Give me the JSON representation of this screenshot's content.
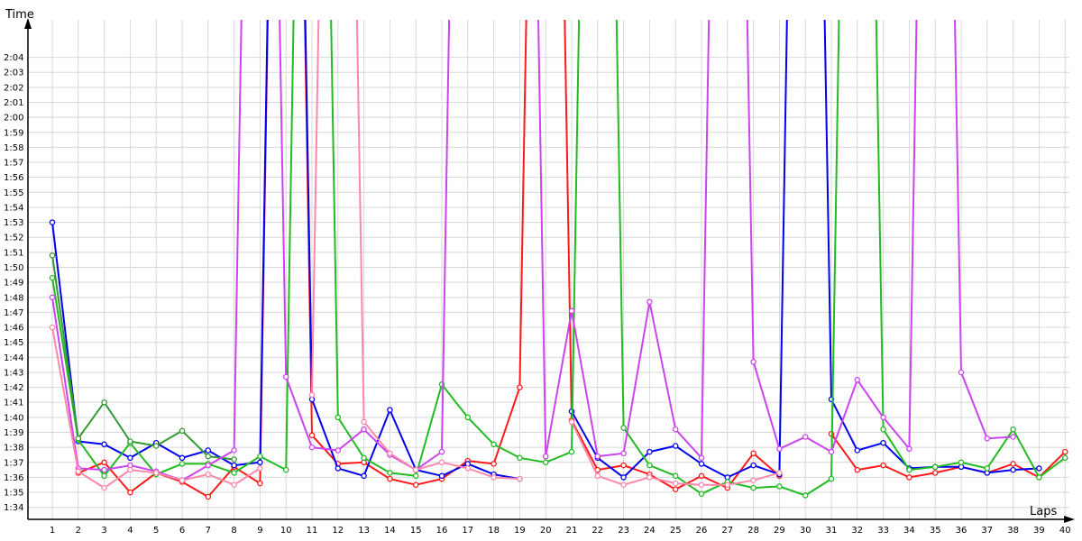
{
  "chart_data": {
    "type": "line",
    "xlabel": "Laps",
    "ylabel": "Time",
    "x": [
      1,
      2,
      3,
      4,
      5,
      6,
      7,
      8,
      9,
      10,
      11,
      12,
      13,
      14,
      15,
      16,
      17,
      18,
      19,
      20,
      21,
      22,
      23,
      24,
      25,
      26,
      27,
      28,
      29,
      30,
      31,
      32,
      33,
      34,
      35,
      36,
      37,
      38,
      39,
      40
    ],
    "y_ticks": [
      "1:34",
      "1:35",
      "1:36",
      "1:37",
      "1:38",
      "1:39",
      "1:40",
      "1:41",
      "1:42",
      "1:43",
      "1:44",
      "1:45",
      "1:46",
      "1:47",
      "1:48",
      "1:49",
      "1:50",
      "1:51",
      "1:52",
      "1:53",
      "1:54",
      "1:55",
      "1:56",
      "1:57",
      "1:58",
      "1:59",
      "2:00",
      "2:01",
      "2:02",
      "2:03",
      "2:04"
    ],
    "ylim_seconds": [
      93.2,
      126.5
    ],
    "grid": true,
    "legend": "none",
    "series": [
      {
        "color": "#ff1a1a",
        "values": [
          null,
          96.3,
          97.0,
          95.0,
          96.3,
          95.7,
          94.7,
          96.7,
          95.6,
          200,
          98.8,
          96.9,
          97.0,
          95.9,
          95.5,
          95.9,
          97.1,
          96.9,
          102.0,
          200,
          99.8,
          96.5,
          96.8,
          96.2,
          95.2,
          96.1,
          95.3,
          97.6,
          96.1,
          null,
          98.9,
          96.5,
          96.8,
          96.0,
          96.3,
          96.7,
          96.3,
          96.9,
          96.0,
          97.7
        ]
      },
      {
        "color": "#0000ee",
        "values": [
          113.0,
          98.4,
          98.2,
          97.3,
          98.3,
          97.3,
          97.8,
          96.8,
          97.0,
          200,
          101.2,
          96.6,
          96.1,
          100.5,
          96.5,
          96.1,
          96.9,
          96.2,
          95.9,
          null,
          100.4,
          97.3,
          96.0,
          97.7,
          98.1,
          96.9,
          96.0,
          96.8,
          96.2,
          200,
          101.2,
          97.8,
          98.3,
          96.6,
          96.7,
          96.7,
          96.3,
          96.5,
          96.6,
          null
        ]
      },
      {
        "color": "#22bb22",
        "values": [
          109.3,
          98.5,
          96.1,
          98.3,
          96.2,
          96.9,
          96.9,
          96.3,
          97.4,
          96.5,
          200,
          100.0,
          97.3,
          96.3,
          96.1,
          102.2,
          100.0,
          98.2,
          97.3,
          97.0,
          97.7,
          200,
          99.3,
          96.8,
          96.1,
          94.9,
          95.7,
          95.3,
          95.4,
          94.8,
          95.9,
          200,
          99.2,
          96.5,
          96.7,
          97.0,
          96.6,
          99.2,
          96.0,
          97.3
        ]
      },
      {
        "color": "#339933",
        "values": [
          110.8,
          98.6,
          101.0,
          98.4,
          98.1,
          99.1,
          97.4,
          97.2,
          null,
          null,
          null,
          null,
          null,
          null,
          null,
          null,
          null,
          null,
          null,
          null,
          null,
          null,
          null,
          null,
          null,
          null,
          null,
          null,
          null,
          null,
          null,
          null,
          null,
          null,
          null,
          null,
          null,
          null,
          null,
          null
        ]
      },
      {
        "color": "#cc44ee",
        "values": [
          108.0,
          96.6,
          96.5,
          96.8,
          96.4,
          95.8,
          96.8,
          97.8,
          200,
          102.7,
          98.0,
          97.8,
          99.2,
          97.5,
          96.5,
          97.7,
          200,
          null,
          200,
          97.4,
          107.1,
          97.4,
          97.6,
          107.7,
          99.2,
          97.3,
          200,
          103.7,
          97.9,
          98.7,
          97.7,
          102.5,
          100.0,
          97.9,
          200,
          103.0,
          98.6,
          98.7,
          null,
          null
        ]
      },
      {
        "color": "#ff88aa",
        "values": [
          106.0,
          96.4,
          95.3,
          96.5,
          96.3,
          95.8,
          96.2,
          95.5,
          96.6,
          null,
          101.5,
          200,
          99.7,
          97.6,
          96.5,
          97.0,
          96.6,
          96.0,
          95.9,
          null,
          99.7,
          96.1,
          95.5,
          96.0,
          95.6,
          95.5,
          95.5,
          95.8,
          96.3,
          null,
          null,
          null,
          null,
          null,
          null,
          null,
          null,
          null,
          null,
          null
        ]
      }
    ]
  }
}
